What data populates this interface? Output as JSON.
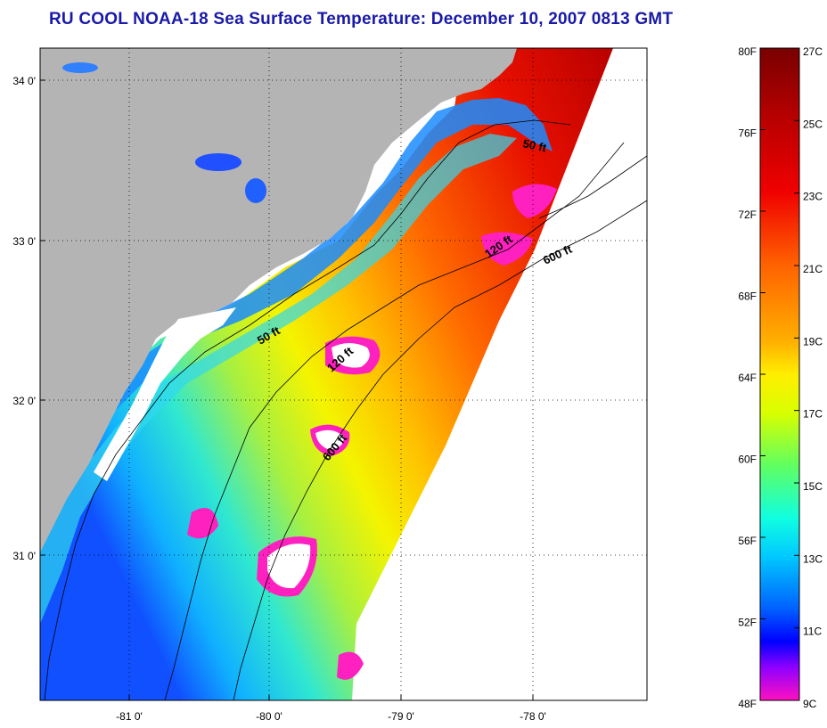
{
  "title": "RU COOL  NOAA-18  Sea Surface Temperature:  December 10, 2007 0813 GMT",
  "map": {
    "lon_ticks": [
      "-81 0'",
      "-80 0'",
      "-79 0'",
      "-78 0'"
    ],
    "lat_ticks": [
      "34 0'",
      "33 0'",
      "32 0'",
      "31 0'"
    ],
    "contour_labels": [
      "50 ft",
      "120 ft",
      "600 ft",
      "50 ft",
      "120 ft",
      "600 ft"
    ],
    "colors": {
      "land": "#b4b4b4",
      "cloud": "#ffffff",
      "ocean_no_data": "#ffffff"
    }
  },
  "colorbar": {
    "fahrenheit_labels": [
      "80F",
      "76F",
      "72F",
      "68F",
      "64F",
      "60F",
      "56F",
      "52F",
      "48F"
    ],
    "celsius_labels": [
      "27C",
      "25C",
      "23C",
      "21C",
      "19C",
      "17C",
      "15C",
      "13C",
      "11C",
      "9C"
    ],
    "range_celsius": [
      9,
      27
    ]
  }
}
